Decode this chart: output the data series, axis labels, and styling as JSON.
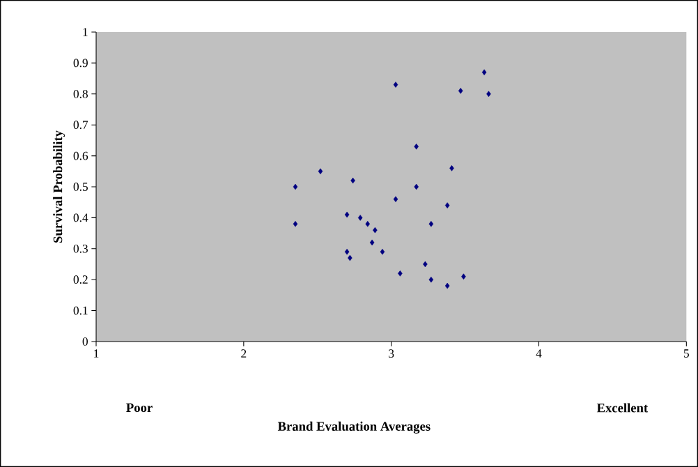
{
  "chart_data": {
    "type": "scatter",
    "xlabel": "Brand Evaluation Averages",
    "ylabel": "Survival Probability",
    "annotations": [
      "Poor",
      "Excellent"
    ],
    "series": [
      {
        "color": "#000080",
        "x": [
          2.35,
          2.35,
          2.52,
          2.74,
          2.7,
          2.79,
          2.84,
          2.89,
          2.87,
          2.94,
          2.7,
          2.72,
          3.03,
          3.03,
          3.06,
          3.17,
          3.17,
          3.23,
          3.27,
          3.27,
          3.38,
          3.38,
          3.41,
          3.47,
          3.49,
          3.63,
          3.66
        ],
        "values": [
          0.5,
          0.38,
          0.55,
          0.52,
          0.41,
          0.4,
          0.38,
          0.36,
          0.32,
          0.29,
          0.29,
          0.27,
          0.83,
          0.46,
          0.22,
          0.63,
          0.5,
          0.25,
          0.38,
          0.2,
          0.18,
          0.44,
          0.56,
          0.81,
          0.21,
          0.87,
          0.8
        ]
      }
    ],
    "marker": "diamond",
    "xlim": [
      1,
      5
    ],
    "xticks": [
      1,
      2,
      3,
      4,
      5
    ],
    "ylim": [
      0,
      1
    ],
    "yticks": [
      0,
      0.1,
      0.2,
      0.3,
      0.4,
      0.5,
      0.6,
      0.7,
      0.8,
      0.9,
      1
    ],
    "grid": false
  }
}
